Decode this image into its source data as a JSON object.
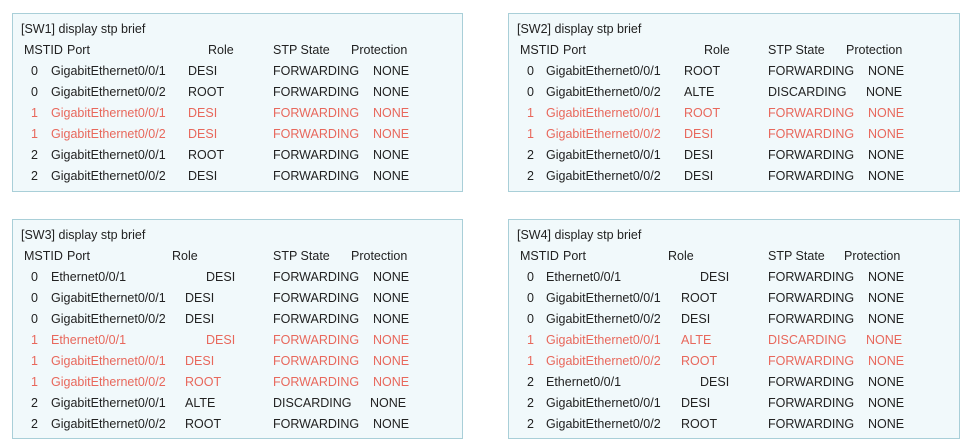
{
  "columns": {
    "mstid": "MSTID",
    "port": "Port",
    "role": "Role",
    "stp_state": "STP State",
    "protection": "Protection"
  },
  "colors": {
    "panel_background": "#f1f9fb",
    "panel_border": "#a9cfd8",
    "text": "#222222",
    "highlight": "#e8685c"
  },
  "panels": [
    {
      "command": "[SW1] display stp brief",
      "rows": [
        {
          "mstid": "0",
          "port": "GigabitEthernet0/0/1",
          "role": "DESI",
          "state": "FORWARDING",
          "protection": "NONE",
          "highlighted": false
        },
        {
          "mstid": "0",
          "port": "GigabitEthernet0/0/2",
          "role": "ROOT",
          "state": "FORWARDING",
          "protection": "NONE",
          "highlighted": false
        },
        {
          "mstid": "1",
          "port": "GigabitEthernet0/0/1",
          "role": "DESI",
          "state": "FORWARDING",
          "protection": "NONE",
          "highlighted": true
        },
        {
          "mstid": "1",
          "port": "GigabitEthernet0/0/2",
          "role": "DESI",
          "state": "FORWARDING",
          "protection": "NONE",
          "highlighted": true
        },
        {
          "mstid": "2",
          "port": "GigabitEthernet0/0/1",
          "role": "ROOT",
          "state": "FORWARDING",
          "protection": "NONE",
          "highlighted": false
        },
        {
          "mstid": "2",
          "port": "GigabitEthernet0/0/2",
          "role": "DESI",
          "state": "FORWARDING",
          "protection": "NONE",
          "highlighted": false
        }
      ]
    },
    {
      "command": "[SW2] display stp brief",
      "rows": [
        {
          "mstid": "0",
          "port": "GigabitEthernet0/0/1",
          "role": "ROOT",
          "state": "FORWARDING",
          "protection": "NONE",
          "highlighted": false
        },
        {
          "mstid": "0",
          "port": "GigabitEthernet0/0/2",
          "role": "ALTE",
          "state": "DISCARDING",
          "protection": "NONE",
          "highlighted": false
        },
        {
          "mstid": "1",
          "port": "GigabitEthernet0/0/1",
          "role": "ROOT",
          "state": "FORWARDING",
          "protection": "NONE",
          "highlighted": true
        },
        {
          "mstid": "1",
          "port": "GigabitEthernet0/0/2",
          "role": "DESI",
          "state": "FORWARDING",
          "protection": "NONE",
          "highlighted": true
        },
        {
          "mstid": "2",
          "port": "GigabitEthernet0/0/1",
          "role": "DESI",
          "state": "FORWARDING",
          "protection": "NONE",
          "highlighted": false
        },
        {
          "mstid": "2",
          "port": "GigabitEthernet0/0/2",
          "role": "DESI",
          "state": "FORWARDING",
          "protection": "NONE",
          "highlighted": false
        }
      ]
    },
    {
      "command": "[SW3] display stp brief",
      "rows": [
        {
          "mstid": "0",
          "port": "Ethernet0/0/1",
          "role": "DESI",
          "state": "FORWARDING",
          "protection": "NONE",
          "highlighted": false
        },
        {
          "mstid": "0",
          "port": "GigabitEthernet0/0/1",
          "role": "DESI",
          "state": "FORWARDING",
          "protection": "NONE",
          "highlighted": false
        },
        {
          "mstid": "0",
          "port": "GigabitEthernet0/0/2",
          "role": "DESI",
          "state": "FORWARDING",
          "protection": "NONE",
          "highlighted": false
        },
        {
          "mstid": "1",
          "port": "Ethernet0/0/1",
          "role": "DESI",
          "state": "FORWARDING",
          "protection": "NONE",
          "highlighted": true
        },
        {
          "mstid": "1",
          "port": "GigabitEthernet0/0/1",
          "role": "DESI",
          "state": "FORWARDING",
          "protection": "NONE",
          "highlighted": true
        },
        {
          "mstid": "1",
          "port": "GigabitEthernet0/0/2",
          "role": "ROOT",
          "state": "FORWARDING",
          "protection": "NONE",
          "highlighted": true
        },
        {
          "mstid": "2",
          "port": "GigabitEthernet0/0/1",
          "role": "ALTE",
          "state": "DISCARDING",
          "protection": "NONE",
          "highlighted": false
        },
        {
          "mstid": "2",
          "port": "GigabitEthernet0/0/2",
          "role": "ROOT",
          "state": "FORWARDING",
          "protection": "NONE",
          "highlighted": false
        }
      ]
    },
    {
      "command": "[SW4] display stp brief",
      "rows": [
        {
          "mstid": "0",
          "port": "Ethernet0/0/1",
          "role": "DESI",
          "state": "FORWARDING",
          "protection": "NONE",
          "highlighted": false
        },
        {
          "mstid": "0",
          "port": "GigabitEthernet0/0/1",
          "role": "ROOT",
          "state": "FORWARDING",
          "protection": "NONE",
          "highlighted": false
        },
        {
          "mstid": "0",
          "port": "GigabitEthernet0/0/2",
          "role": "DESI",
          "state": "FORWARDING",
          "protection": "NONE",
          "highlighted": false
        },
        {
          "mstid": "1",
          "port": "GigabitEthernet0/0/1",
          "role": "ALTE",
          "state": "DISCARDING",
          "protection": "NONE",
          "highlighted": true
        },
        {
          "mstid": "1",
          "port": "GigabitEthernet0/0/2",
          "role": "ROOT",
          "state": "FORWARDING",
          "protection": "NONE",
          "highlighted": true
        },
        {
          "mstid": "2",
          "port": "Ethernet0/0/1",
          "role": "DESI",
          "state": "FORWARDING",
          "protection": "NONE",
          "highlighted": false
        },
        {
          "mstid": "2",
          "port": "GigabitEthernet0/0/1",
          "role": "DESI",
          "state": "FORWARDING",
          "protection": "NONE",
          "highlighted": false
        },
        {
          "mstid": "2",
          "port": "GigabitEthernet0/0/2",
          "role": "ROOT",
          "state": "FORWARDING",
          "protection": "NONE",
          "highlighted": false
        }
      ]
    }
  ]
}
